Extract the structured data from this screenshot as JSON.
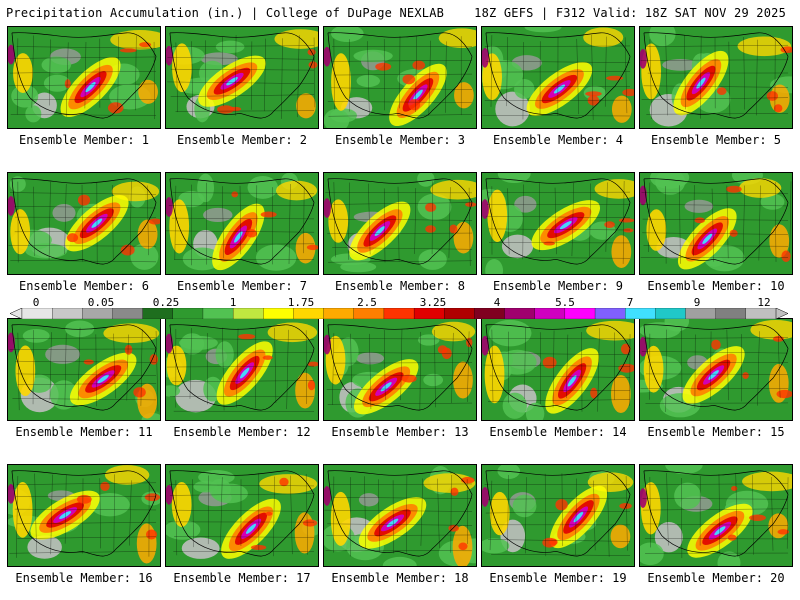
{
  "header": {
    "left_title": "Precipitation Accumulation (in.) | College of DuPage NEXLAB",
    "right_title": "18Z GEFS | F312 Valid: 18Z SAT NOV 29 2025"
  },
  "panels": [
    {
      "label": "Ensemble Member: 1"
    },
    {
      "label": "Ensemble Member: 2"
    },
    {
      "label": "Ensemble Member: 3"
    },
    {
      "label": "Ensemble Member: 4"
    },
    {
      "label": "Ensemble Member: 5"
    },
    {
      "label": "Ensemble Member: 6"
    },
    {
      "label": "Ensemble Member: 7"
    },
    {
      "label": "Ensemble Member: 8"
    },
    {
      "label": "Ensemble Member: 9"
    },
    {
      "label": "Ensemble Member: 10"
    },
    {
      "label": "Ensemble Member: 11"
    },
    {
      "label": "Ensemble Member: 12"
    },
    {
      "label": "Ensemble Member: 13"
    },
    {
      "label": "Ensemble Member: 14"
    },
    {
      "label": "Ensemble Member: 15"
    },
    {
      "label": "Ensemble Member: 16"
    },
    {
      "label": "Ensemble Member: 17"
    },
    {
      "label": "Ensemble Member: 18"
    },
    {
      "label": "Ensemble Member: 19"
    },
    {
      "label": "Ensemble Member: 20"
    }
  ],
  "colorbar": {
    "tick_labels": [
      "0",
      "0.05",
      "0.25",
      "1",
      "1.75",
      "2.5",
      "3.25",
      "4",
      "5.5",
      "7",
      "9",
      "12"
    ],
    "colors": [
      "#e6e6e6",
      "#c8c8c8",
      "#a8a8a8",
      "#8a8a8a",
      "#1e6e1e",
      "#2f9a2f",
      "#52c252",
      "#c0e840",
      "#ffff00",
      "#ffd700",
      "#ffaa00",
      "#ff7f00",
      "#ff3300",
      "#e00000",
      "#b00000",
      "#800020",
      "#a0006e",
      "#d000c0",
      "#ff00ff",
      "#8060ff",
      "#40e0ff",
      "#20c8c8",
      "#a0a0a0",
      "#808080",
      "#c0c0c0"
    ]
  }
}
